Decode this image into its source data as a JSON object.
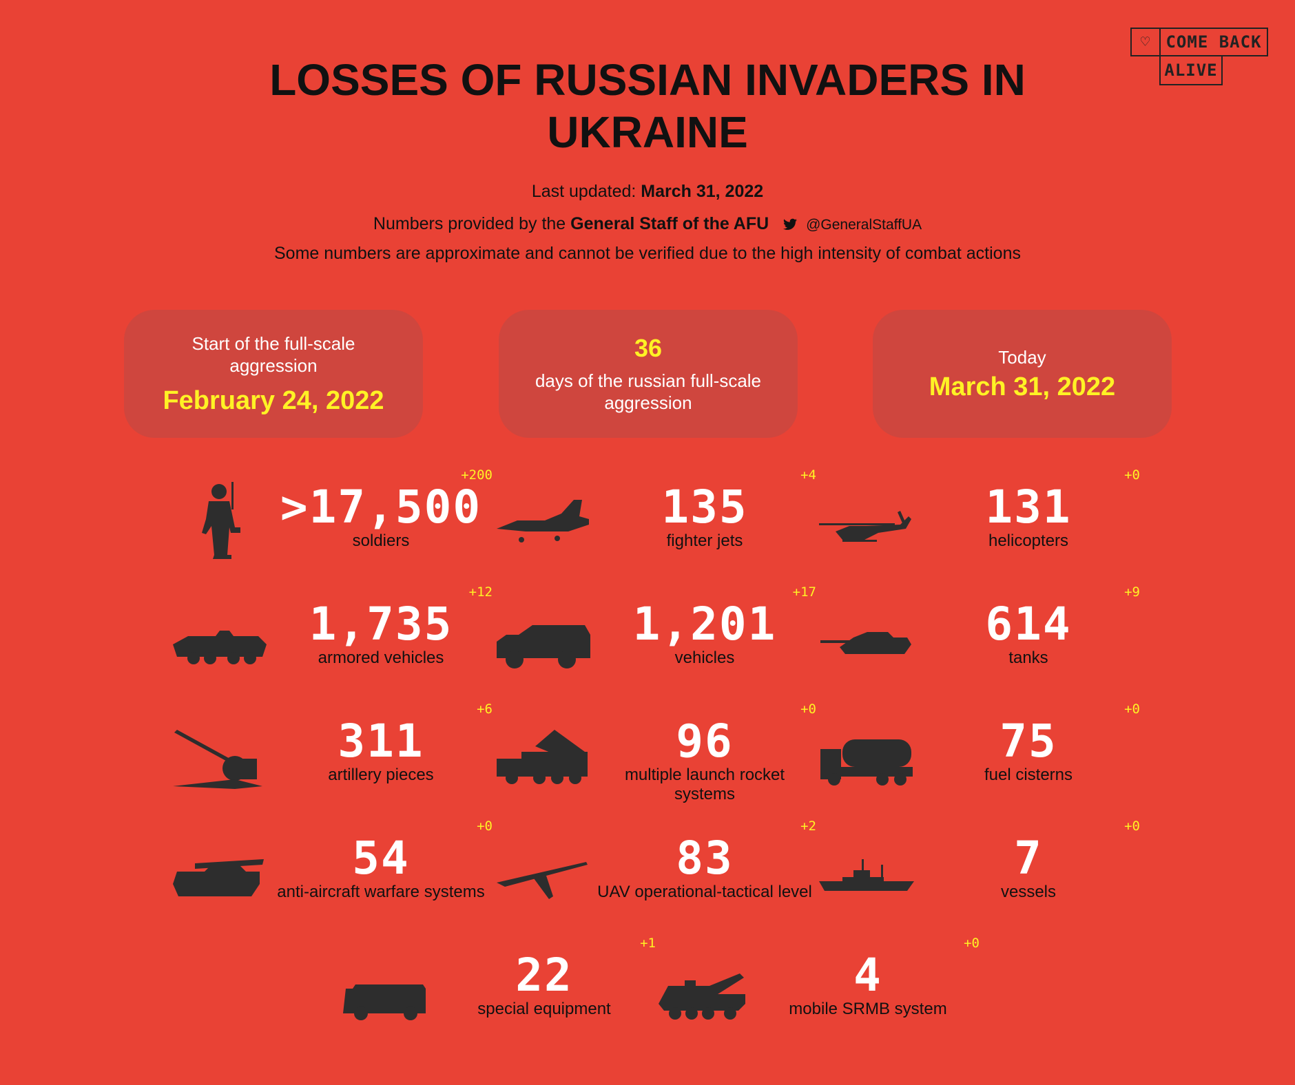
{
  "logo": {
    "heart": "♡",
    "line1": "COME BACK",
    "line2": "ALIVE"
  },
  "title": "LOSSES OF RUSSIAN INVADERS IN UKRAINE",
  "updated": {
    "label": "Last updated:",
    "date": "March 31, 2022"
  },
  "source": {
    "prefix": "Numbers provided by the",
    "org": "General Staff of the AFU",
    "handle": "@GeneralStaffUA"
  },
  "note": "Some numbers are approximate and cannot be verified due to the high intensity of combat actions",
  "cards": {
    "start": {
      "label": "Start of the full-scale aggression",
      "date": "February 24, 2022"
    },
    "days": {
      "number": "36",
      "label": "days of the russian full-scale aggression"
    },
    "today": {
      "label": "Today",
      "date": "March 31, 2022"
    }
  },
  "stats": [
    {
      "value": ">17,500",
      "delta": "+200",
      "label": "soldiers",
      "icon": "soldier-icon"
    },
    {
      "value": "135",
      "delta": "+4",
      "label": "fighter jets",
      "icon": "jet-icon"
    },
    {
      "value": "131",
      "delta": "+0",
      "label": "helicopters",
      "icon": "helicopter-icon"
    },
    {
      "value": "1,735",
      "delta": "+12",
      "label": "armored vehicles",
      "icon": "apc-icon"
    },
    {
      "value": "1,201",
      "delta": "+17",
      "label": "vehicles",
      "icon": "truck-icon"
    },
    {
      "value": "614",
      "delta": "+9",
      "label": "tanks",
      "icon": "tank-icon"
    },
    {
      "value": "311",
      "delta": "+6",
      "label": "artillery pieces",
      "icon": "artillery-icon"
    },
    {
      "value": "96",
      "delta": "+0",
      "label": "multiple launch rocket systems",
      "icon": "mlrs-icon"
    },
    {
      "value": "75",
      "delta": "+0",
      "label": "fuel cisterns",
      "icon": "fuel-truck-icon"
    },
    {
      "value": "54",
      "delta": "+0",
      "label": "anti-aircraft warfare systems",
      "icon": "air-defense-icon"
    },
    {
      "value": "83",
      "delta": "+2",
      "label": "UAV operational-tactical level",
      "icon": "drone-icon"
    },
    {
      "value": "7",
      "delta": "+0",
      "label": "vessels",
      "icon": "ship-icon"
    },
    {
      "value": "22",
      "delta": "+1",
      "label": "special equipment",
      "icon": "special-vehicle-icon"
    },
    {
      "value": "4",
      "delta": "+0",
      "label": "mobile SRMB system",
      "icon": "missile-launcher-icon"
    }
  ],
  "colors": {
    "background": "#E94235",
    "card": "#CF463E",
    "accent": "#FFF225",
    "icon": "#2D2D2D"
  }
}
